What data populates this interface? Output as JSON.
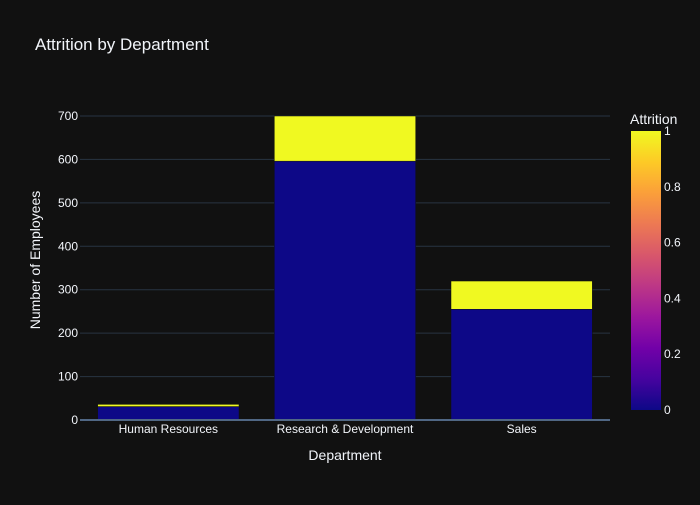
{
  "chart_data": {
    "type": "bar",
    "title": "Attrition by Department",
    "xlabel": "Department",
    "ylabel": "Number of Employees",
    "categories": [
      "Human Resources",
      "Research & Development",
      "Sales"
    ],
    "ylim": [
      0,
      700
    ],
    "yticks": [
      0,
      100,
      200,
      300,
      400,
      500,
      600,
      700
    ],
    "grid": true,
    "stacked": true,
    "series": [
      {
        "attrition_value": 0,
        "color": "#0d0887",
        "values": [
          31,
          596,
          255
        ]
      },
      {
        "attrition_value": 1,
        "color": "#f0f921",
        "values": [
          5,
          104,
          65
        ]
      }
    ],
    "colorbar": {
      "title": "Attrition",
      "ticks": [
        "0",
        "0.2",
        "0.4",
        "0.6",
        "0.8",
        "1"
      ],
      "range": [
        0,
        1
      ],
      "colorscale": [
        "#0d0887",
        "#46039f",
        "#7201a8",
        "#9c179e",
        "#bd3786",
        "#d8576b",
        "#ed7953",
        "#fb9f3a",
        "#fdca26",
        "#f0f921"
      ]
    }
  }
}
